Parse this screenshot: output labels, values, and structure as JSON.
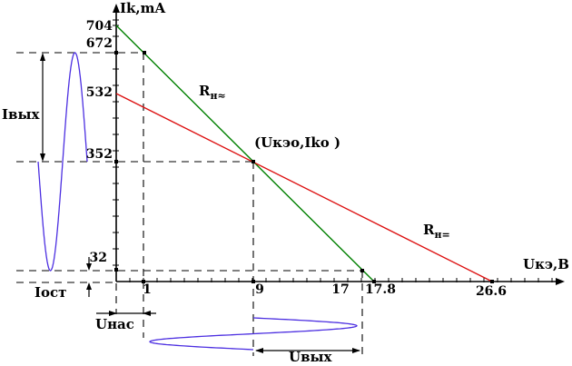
{
  "chart_data": {
    "type": "line",
    "description": "Transistor collector load lines (DC and AC) with operating point, saturation and cutoff points, and output current/voltage sine waveforms",
    "xlabel": "Uкэ,B",
    "ylabel": "Ik,mA",
    "xlim": [
      0,
      32
    ],
    "ylim": [
      0,
      750
    ],
    "grid": false,
    "series": [
      {
        "id": "ac-load-line",
        "label": "Rн≈",
        "label_main": "R",
        "label_sub": "н≈",
        "color": "#008000",
        "points_u_i": [
          [
            0,
            704
          ],
          [
            17.8,
            0
          ]
        ]
      },
      {
        "id": "dc-load-line",
        "label": "Rн=",
        "label_main": "R",
        "label_sub": "н=",
        "color": "#dd1111",
        "points_u_i": [
          [
            0,
            532
          ],
          [
            26.6,
            0
          ]
        ]
      }
    ],
    "operating_point": {
      "u_v": 9,
      "i_ma": 352,
      "label": "(Uкэо,Iko )"
    },
    "saturation_point": {
      "u_v": 1,
      "i_ma": 672
    },
    "cutoff_point": {
      "u_v": 17,
      "i_ma": 32
    },
    "x_tick_labels": [
      "1",
      "9",
      "17",
      "17.8",
      "26.6"
    ],
    "y_tick_labels": [
      "704",
      "672",
      "532",
      "352",
      "32"
    ],
    "waveforms": {
      "color": "#4c2fe1",
      "collector_current": {
        "label": "Iвых",
        "center_ma": 352,
        "max_ma": 672,
        "min_ma": 32
      },
      "collector_voltage": {
        "label": "Uвых",
        "center_v": 9,
        "max_v": 17,
        "min_v": 1
      }
    },
    "annotations": {
      "output_current_label": "Iвых",
      "residual_current_label": "Iост",
      "saturation_voltage_label": "Uнас",
      "output_voltage_label": "Uвых"
    },
    "axes_color": "#000000",
    "background": "#ffffff"
  }
}
